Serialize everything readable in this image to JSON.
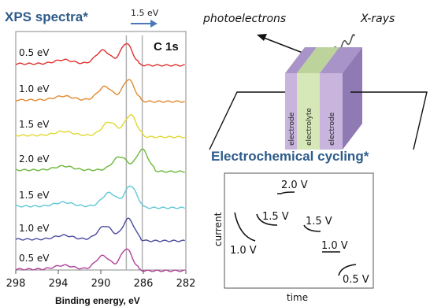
{
  "xps": {
    "title": "XPS spectra*",
    "shift_label": "1.5 eV",
    "element_label": "C 1s",
    "x_ticks": [
      "298",
      "294",
      "290",
      "286",
      "282"
    ],
    "x_axis_label": "Binding energy, eV",
    "spectra": [
      {
        "label": "0.5 eV",
        "color": "#e03030",
        "peak_be": 287.6,
        "shoulder_be": 289.8
      },
      {
        "label": "1.0 eV",
        "color": "#e08a30",
        "peak_be": 287.4,
        "shoulder_be": 289.6
      },
      {
        "label": "1.5 eV",
        "color": "#e0d830",
        "peak_be": 287.2,
        "shoulder_be": 289.2
      },
      {
        "label": "2.0 eV",
        "color": "#6bb83a",
        "peak_be": 286.1,
        "shoulder_be": 288.2
      },
      {
        "label": "1.5 eV",
        "color": "#5fc7d6",
        "peak_be": 287.2,
        "shoulder_be": 289.2
      },
      {
        "label": "1.0 eV",
        "color": "#4a4aa0",
        "peak_be": 287.4,
        "shoulder_be": 289.6
      },
      {
        "label": "0.5 eV",
        "color": "#b0409a",
        "peak_be": 287.6,
        "shoulder_be": 289.8
      }
    ]
  },
  "cell": {
    "photoelectrons_label": "photoelectrons",
    "xrays_label": "X-rays",
    "layers": [
      "electrode",
      "electrolyte",
      "electrode"
    ],
    "layer_colors": [
      "#c8b4dc",
      "#d6e8b8",
      "#c8b4dc"
    ],
    "cycling_label": "Electrochemical cycling*"
  },
  "cycling": {
    "x_axis_label": "time",
    "y_axis_label": "current",
    "steps": [
      "1.0 V",
      "1.5 V",
      "2.0 V",
      "1.5 V",
      "1.0 V",
      "0.5 V"
    ]
  },
  "colors": {
    "title": "#2d5b8a",
    "arrow": "#4a78b8"
  }
}
